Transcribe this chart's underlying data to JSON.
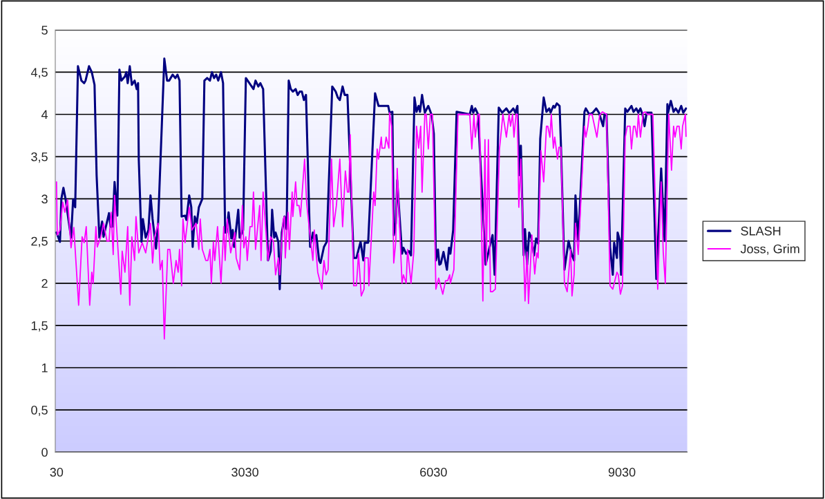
{
  "chart_data": {
    "type": "line",
    "xlim": [
      10,
      10070
    ],
    "xticks": [
      30,
      3030,
      6030,
      9030
    ],
    "ylim": [
      0,
      5
    ],
    "yticks": [
      0,
      {
        "value": 0.5,
        "label": "0,5"
      },
      1,
      {
        "value": 1.5,
        "label": "1,5"
      },
      2,
      {
        "value": 2.5,
        "label": "2,5"
      },
      3,
      {
        "value": 3.5,
        "label": "3,5"
      },
      4,
      {
        "value": 4.5,
        "label": "4,5"
      },
      5
    ],
    "grid": "y",
    "legend": "right",
    "marker": "none",
    "line_style": "solid",
    "series": [
      {
        "name": "SLASH",
        "color": "#000080",
        "x": [
          30,
          85,
          107,
          140,
          173,
          228,
          261,
          294,
          327,
          371,
          426,
          470,
          492,
          547,
          591,
          635,
          668,
          712,
          756,
          778,
          866,
          888,
          921,
          954,
          998,
          1031,
          1064,
          1119,
          1141,
          1163,
          1196,
          1229,
          1273,
          1306,
          1328,
          1339,
          1383,
          1405,
          1449,
          1493,
          1526,
          1559,
          1614,
          1647,
          1746,
          1790,
          1823,
          1878,
          1922,
          1955,
          1988,
          2021,
          2076,
          2098,
          2142,
          2175,
          2197,
          2230,
          2263,
          2296,
          2351,
          2384,
          2428,
          2472,
          2505,
          2538,
          2571,
          2604,
          2648,
          2681,
          2714,
          2736,
          2769,
          2813,
          2835,
          2857,
          2923,
          2945,
          3000,
          3044,
          3165,
          3198,
          3242,
          3275,
          3319,
          3396,
          3440,
          3462,
          3495,
          3517,
          3561,
          3583,
          3616,
          3660,
          3693,
          3726,
          3759,
          3792,
          3836,
          3869,
          3902,
          3935,
          3968,
          4001,
          4067,
          4111,
          4133,
          4166,
          4210,
          4232,
          4287,
          4331,
          4419,
          4474,
          4507,
          4540,
          4584,
          4617,
          4661,
          4760,
          4804,
          4870,
          4914,
          4936,
          4991,
          5101,
          5156,
          5211,
          5310,
          5332,
          5376,
          5398,
          5431,
          5453,
          5530,
          5552,
          5596,
          5640,
          5673,
          5728,
          5761,
          5794,
          5816,
          5849,
          5893,
          5948,
          6003,
          6036,
          6069,
          6102,
          6124,
          6146,
          6190,
          6245,
          6278,
          6300,
          6344,
          6399,
          6608,
          6641,
          6663,
          6696,
          6740,
          6861,
          6916,
          6971,
          7004,
          7070,
          7125,
          7191,
          7235,
          7257,
          7301,
          7334,
          7367,
          7400,
          7422,
          7455,
          7466,
          7488,
          7521,
          7554,
          7587,
          7631,
          7664,
          7697,
          7730,
          7785,
          7829,
          7873,
          7895,
          7939,
          7961,
          7994,
          8038,
          8060,
          8115,
          8181,
          8203,
          8236,
          8269,
          8291,
          8335,
          8434,
          8456,
          8511,
          8566,
          8621,
          8665,
          8731,
          8753,
          8786,
          8841,
          8885,
          8907,
          8951,
          8962,
          8995,
          9017,
          9083,
          9116,
          9182,
          9215,
          9259,
          9292,
          9325,
          9358,
          9391,
          9424,
          9501,
          9578,
          9655,
          9710,
          9754,
          9765,
          9809,
          9853,
          9886,
          9930,
          9974,
          10007,
          10051
        ],
        "values": [
          2.6,
          2.49,
          3.0,
          3.13,
          3.0,
          2.71,
          2.54,
          2.99,
          2.9,
          4.57,
          4.4,
          4.37,
          4.4,
          4.57,
          4.5,
          4.35,
          3.28,
          2.54,
          2.73,
          2.55,
          2.83,
          2.67,
          2.67,
          3.2,
          2.8,
          4.53,
          4.4,
          4.45,
          4.5,
          4.37,
          4.57,
          4.35,
          4.4,
          4.3,
          4.37,
          3.47,
          2.49,
          2.76,
          2.54,
          2.63,
          3.04,
          2.76,
          2.41,
          2.71,
          4.66,
          4.4,
          4.4,
          4.47,
          4.43,
          4.47,
          4.4,
          2.79,
          2.8,
          2.75,
          3.04,
          2.9,
          2.43,
          2.79,
          2.71,
          2.9,
          3.0,
          4.4,
          4.43,
          4.4,
          4.5,
          4.43,
          4.47,
          4.4,
          4.5,
          4.37,
          2.6,
          2.6,
          2.84,
          2.53,
          2.63,
          2.43,
          2.87,
          2.54,
          2.63,
          4.43,
          4.3,
          4.4,
          4.33,
          4.37,
          4.3,
          2.27,
          2.38,
          2.87,
          2.54,
          2.6,
          2.49,
          1.93,
          2.6,
          2.79,
          2.64,
          4.4,
          4.3,
          4.27,
          4.3,
          4.23,
          4.27,
          4.27,
          4.17,
          4.23,
          2.43,
          2.6,
          2.51,
          2.57,
          2.27,
          2.24,
          2.43,
          2.49,
          4.33,
          4.27,
          4.2,
          4.17,
          4.33,
          4.23,
          4.23,
          2.3,
          2.3,
          2.49,
          2.27,
          2.48,
          2.48,
          4.25,
          4.1,
          4.1,
          4.1,
          4.02,
          4.03,
          2.57,
          2.71,
          3.22,
          2.35,
          2.42,
          2.35,
          2.38,
          2.33,
          4.2,
          4.03,
          4.1,
          4.03,
          4.23,
          4.02,
          4.1,
          3.99,
          3.77,
          2.27,
          2.4,
          2.22,
          2.23,
          2.37,
          2.16,
          2.42,
          2.35,
          2.63,
          4.03,
          4.0,
          4.1,
          4.02,
          4.07,
          4.0,
          2.22,
          2.4,
          2.57,
          2.1,
          4.08,
          4.02,
          4.07,
          4.02,
          4.03,
          4.07,
          4.02,
          4.1,
          3.28,
          3.63,
          2.6,
          2.33,
          2.64,
          2.22,
          2.6,
          2.54,
          2.33,
          2.53,
          2.47,
          3.71,
          4.2,
          4.03,
          4.07,
          4.02,
          4.1,
          4.08,
          4.13,
          4.1,
          3.63,
          2.16,
          2.5,
          2.43,
          2.33,
          2.27,
          3.04,
          2.5,
          4.03,
          4.07,
          4.0,
          4.02,
          4.07,
          4.02,
          3.86,
          4.0,
          4.0,
          2.43,
          2.1,
          2.48,
          2.3,
          2.6,
          2.51,
          2.1,
          4.07,
          4.03,
          4.1,
          4.03,
          4.07,
          4.02,
          4.07,
          4.0,
          3.86,
          4.02,
          4.02,
          2.05,
          3.36,
          2.5,
          4.12,
          4.02,
          4.16,
          4.03,
          4.07,
          4.02,
          4.1,
          4.02,
          4.07
        ]
      },
      {
        "name": "Joss, Grim",
        "color": "#ff00ff",
        "x": [
          30,
          41,
          85,
          129,
          162,
          206,
          261,
          305,
          382,
          437,
          470,
          503,
          558,
          591,
          613,
          657,
          679,
          734,
          778,
          833,
          866,
          899,
          932,
          954,
          1053,
          1075,
          1119,
          1163,
          1196,
          1229,
          1273,
          1295,
          1339,
          1394,
          1449,
          1526,
          1559,
          1592,
          1647,
          1680,
          1713,
          1746,
          1801,
          1834,
          1889,
          1933,
          1966,
          1988,
          2021,
          2043,
          2076,
          2142,
          2186,
          2252,
          2296,
          2318,
          2351,
          2373,
          2406,
          2439,
          2472,
          2494,
          2527,
          2549,
          2593,
          2648,
          2692,
          2714,
          2747,
          2802,
          2868,
          2890,
          2945,
          2989,
          3011,
          3044,
          3066,
          3110,
          3143,
          3165,
          3198,
          3264,
          3286,
          3319,
          3396,
          3440,
          3484,
          3517,
          3561,
          3583,
          3638,
          3660,
          3671,
          3715,
          3737,
          3781,
          3792,
          3836,
          3858,
          3891,
          3913,
          3979,
          4012,
          4056,
          4111,
          4133,
          4188,
          4254,
          4287,
          4320,
          4353,
          4408,
          4441,
          4485,
          4540,
          4584,
          4628,
          4661,
          4683,
          4705,
          4760,
          4804,
          4837,
          4881,
          4925,
          4936,
          4991,
          5002,
          5079,
          5101,
          5134,
          5156,
          5200,
          5211,
          5255,
          5277,
          5321,
          5332,
          5365,
          5398,
          5431,
          5453,
          5530,
          5552,
          5596,
          5618,
          5673,
          5717,
          5761,
          5794,
          5827,
          5849,
          5893,
          5915,
          5948,
          5981,
          6014,
          6069,
          6113,
          6179,
          6223,
          6256,
          6289,
          6300,
          6355,
          6421,
          6608,
          6641,
          6674,
          6696,
          6740,
          6762,
          6817,
          6850,
          6872,
          6905,
          6938,
          6971,
          7015,
          7081,
          7136,
          7191,
          7235,
          7257,
          7290,
          7312,
          7345,
          7367,
          7389,
          7422,
          7488,
          7521,
          7543,
          7598,
          7642,
          7675,
          7697,
          7741,
          7785,
          7829,
          7851,
          7884,
          7906,
          7939,
          7961,
          8005,
          8027,
          8060,
          8115,
          8159,
          8214,
          8236,
          8269,
          8291,
          8335,
          8434,
          8456,
          8489,
          8511,
          8555,
          8632,
          8676,
          8720,
          8786,
          8841,
          8885,
          8951,
          8973,
          9006,
          9039,
          9083,
          9116,
          9160,
          9182,
          9215,
          9237,
          9270,
          9292,
          9325,
          9369,
          9402,
          9435,
          9523,
          9600,
          9655,
          9688,
          9721,
          9776,
          9820,
          9853,
          9875,
          9908,
          9941,
          9974,
          9996,
          10040,
          10051
        ],
        "values": [
          3.2,
          2.57,
          2.63,
          2.96,
          2.84,
          2.99,
          2.42,
          2.66,
          1.74,
          2.55,
          2.48,
          2.67,
          1.74,
          2.13,
          2.0,
          2.67,
          2.43,
          2.55,
          2.71,
          2.5,
          2.5,
          2.84,
          2.34,
          3.04,
          1.87,
          2.38,
          2.13,
          2.67,
          1.74,
          2.55,
          2.27,
          2.79,
          2.36,
          2.48,
          2.36,
          2.71,
          2.24,
          2.55,
          2.71,
          2.16,
          2.27,
          1.34,
          2.4,
          2.4,
          2.0,
          2.27,
          2.13,
          2.4,
          1.97,
          2.76,
          2.48,
          2.9,
          2.63,
          2.71,
          2.4,
          2.76,
          2.4,
          2.35,
          2.27,
          2.27,
          2.4,
          2.0,
          2.49,
          2.27,
          2.67,
          2.0,
          2.67,
          2.27,
          2.76,
          2.36,
          2.6,
          2.3,
          2.16,
          2.92,
          2.42,
          2.55,
          2.27,
          2.67,
          2.67,
          3.08,
          2.4,
          2.92,
          2.27,
          3.08,
          2.27,
          2.55,
          2.49,
          2.1,
          2.3,
          2.1,
          2.76,
          2.79,
          2.3,
          2.84,
          2.4,
          3.08,
          2.79,
          3.2,
          2.92,
          2.92,
          2.79,
          3.47,
          2.95,
          2.63,
          2.27,
          2.63,
          2.13,
          1.93,
          2.27,
          2.1,
          2.16,
          3.47,
          2.67,
          2.92,
          3.47,
          2.67,
          3.33,
          3.08,
          3.08,
          3.76,
          1.97,
          1.97,
          2.35,
          1.85,
          1.93,
          2.3,
          2.3,
          1.97,
          3.08,
          2.92,
          3.59,
          3.47,
          3.73,
          3.6,
          3.6,
          3.73,
          3.6,
          4.02,
          3.86,
          2.24,
          2.5,
          3.36,
          2.0,
          2.1,
          2.0,
          2.4,
          2.0,
          2.37,
          3.86,
          3.6,
          3.86,
          3.08,
          4.0,
          4.0,
          3.59,
          4.0,
          4.0,
          1.93,
          2.06,
          1.87,
          2.03,
          2.03,
          2.1,
          2.0,
          2.16,
          4.0,
          4.0,
          3.59,
          4.0,
          3.73,
          4.0,
          4.0,
          1.79,
          3.7,
          2.22,
          3.7,
          1.9,
          1.9,
          1.93,
          3.59,
          4.0,
          3.73,
          4.0,
          3.86,
          4.0,
          3.73,
          4.0,
          4.0,
          2.9,
          3.47,
          1.79,
          2.37,
          1.76,
          2.57,
          2.11,
          2.36,
          2.3,
          3.57,
          3.2,
          3.86,
          3.86,
          3.73,
          4.0,
          3.6,
          3.73,
          3.47,
          3.61,
          3.61,
          2.0,
          1.9,
          2.4,
          1.85,
          2.1,
          2.71,
          2.34,
          3.86,
          3.73,
          3.86,
          4.0,
          4.0,
          3.73,
          3.99,
          4.03,
          4.0,
          1.97,
          1.93,
          2.13,
          2.1,
          1.87,
          1.97,
          3.73,
          3.86,
          3.86,
          3.59,
          3.86,
          3.86,
          3.73,
          4.0,
          3.73,
          4.02,
          4.03,
          4.0,
          4.0,
          1.93,
          3.2,
          2.37,
          2.0,
          4.0,
          3.34,
          3.86,
          3.73,
          3.86,
          3.86,
          3.59,
          3.86,
          4.0,
          3.74
        ]
      }
    ]
  }
}
